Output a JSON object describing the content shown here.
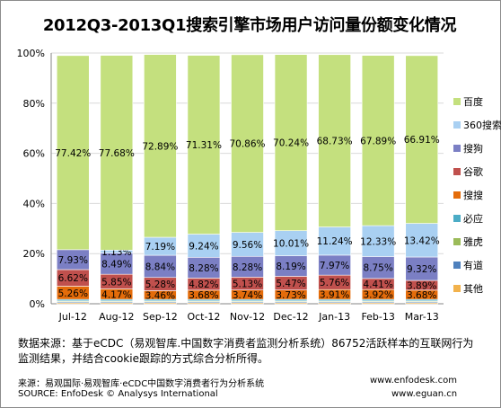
{
  "title": "2012Q3-2013Q1搜索引擎市场用户访问量份额变化情况",
  "notes": {
    "line1": "数据来源：基于eCDC（易观智库.中国数字消费者监测分析系统）86752活跃样本的互联网行为",
    "line2": "监测结果，并结合cookie跟踪的方式综合分析所得。"
  },
  "footer": {
    "source_cn": "来源：易观国际·易观智库·eCDC中国数字消费者行为分析系统",
    "source_en": "SOURCE: EnfoDesk © Analysys International",
    "url1": "www.enfodesk.com",
    "url2": "www.eguan.cn"
  },
  "chart_data": {
    "type": "bar",
    "stacked": true,
    "categories": [
      "Jul-12",
      "Aug-12",
      "Sep-12",
      "Oct-12",
      "Nov-12",
      "Dec-12",
      "Jan-13",
      "Feb-13",
      "Mar-13"
    ],
    "yticks": [
      "0%",
      "20%",
      "40%",
      "60%",
      "80%",
      "100%"
    ],
    "ylim": [
      0,
      100
    ],
    "grid": true,
    "legend_position": "right",
    "series": [
      {
        "name": "其他",
        "color": "#f2b24c",
        "values": [
          0.45,
          0.45,
          0.45,
          0.45,
          0.45,
          0.45,
          0.45,
          0.45,
          0.45
        ]
      },
      {
        "name": "有道",
        "color": "#4f81bd",
        "values": [
          0.4,
          0.4,
          0.4,
          0.4,
          0.4,
          0.4,
          0.4,
          0.4,
          0.4
        ]
      },
      {
        "name": "雅虎",
        "color": "#9bbb59",
        "values": [
          0.3,
          0.3,
          0.3,
          0.3,
          0.3,
          0.3,
          0.3,
          0.3,
          0.3
        ]
      },
      {
        "name": "必应",
        "color": "#4bacc6",
        "values": [
          0.6,
          0.6,
          0.6,
          0.6,
          0.6,
          0.6,
          0.6,
          0.6,
          0.6
        ]
      },
      {
        "name": "搜搜",
        "color": "#e46c0a",
        "values": [
          5.26,
          4.17,
          3.46,
          3.68,
          3.74,
          3.73,
          3.91,
          3.92,
          3.68
        ]
      },
      {
        "name": "谷歌",
        "color": "#c0504d",
        "values": [
          6.62,
          5.85,
          5.28,
          4.82,
          5.13,
          5.47,
          5.76,
          4.41,
          3.89
        ]
      },
      {
        "name": "搜狗",
        "color": "#7b7fc4",
        "values": [
          7.93,
          8.49,
          8.84,
          8.28,
          8.28,
          8.19,
          7.97,
          8.75,
          9.32
        ]
      },
      {
        "name": "360搜索",
        "color": "#a9d0f2",
        "values": [
          0,
          1.13,
          7.19,
          9.24,
          9.56,
          10.01,
          11.24,
          12.33,
          13.42
        ]
      },
      {
        "name": "百度",
        "color": "#c4e07e",
        "values": [
          77.42,
          77.68,
          72.89,
          71.31,
          70.86,
          70.24,
          68.73,
          67.89,
          66.91
        ]
      }
    ],
    "data_labels": {
      "百度": [
        "77.42%",
        "77.68%",
        "72.89%",
        "71.31%",
        "70.86%",
        "70.24%",
        "68.73%",
        "67.89%",
        "66.91%"
      ],
      "360搜索": [
        "",
        "1.13%",
        "7.19%",
        "9.24%",
        "9.56%",
        "10.01%",
        "11.24%",
        "12.33%",
        "13.42%"
      ],
      "搜狗": [
        "7.93%",
        "8.49%",
        "8.84%",
        "8.28%",
        "8.28%",
        "8.19%",
        "7.97%",
        "8.75%",
        "9.32%"
      ],
      "谷歌": [
        "6.62%",
        "5.85%",
        "5.28%",
        "4.82%",
        "5.13%",
        "5.47%",
        "5.76%",
        "4.41%",
        "3.89%"
      ],
      "搜搜": [
        "5.26%",
        "4.17%",
        "3.46%",
        "3.68%",
        "3.74%",
        "3.73%",
        "3.91%",
        "3.92%",
        "3.68%"
      ]
    },
    "legend_order": [
      "百度",
      "360搜索",
      "搜狗",
      "谷歌",
      "搜搜",
      "必应",
      "雅虎",
      "有道",
      "其他"
    ]
  }
}
